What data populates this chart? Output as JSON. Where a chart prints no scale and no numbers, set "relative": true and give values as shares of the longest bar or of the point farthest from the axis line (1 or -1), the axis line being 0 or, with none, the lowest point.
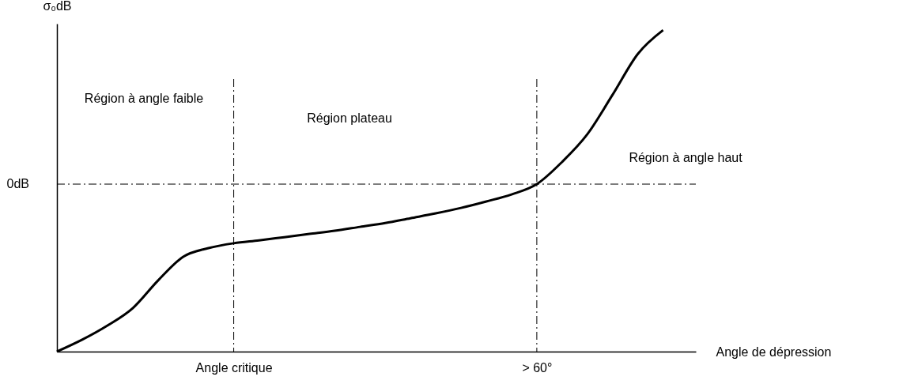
{
  "chart_data": {
    "type": "line",
    "relative": true,
    "xlabel": "Angle de dépression",
    "ylabel": "σ₀dB",
    "categories": [
      null,
      null,
      null,
      null,
      null,
      null,
      null,
      "Angle critique",
      null,
      null,
      null,
      null,
      null,
      null,
      null,
      null,
      null,
      null,
      null,
      "> 60°",
      null,
      null,
      null,
      null,
      null
    ],
    "series": [
      {
        "color": "#000000",
        "values": [
          0,
          0.037,
          0.081,
          0.135,
          0.221,
          0.295,
          0.322,
          0.337,
          0.346,
          0.356,
          0.366,
          0.376,
          0.388,
          0.4,
          0.415,
          0.43,
          0.447,
          0.467,
          0.489,
          0.521,
          0.59,
          0.676,
          0.799,
          0.926,
          1
        ]
      }
    ],
    "ref_lines": [
      {
        "axis": "x",
        "value": "Angle critique",
        "color": "#000000",
        "line_style": "dashed"
      },
      {
        "axis": "x",
        "value": "> 60°",
        "color": "#000000",
        "line_style": "dashed"
      },
      {
        "axis": "y",
        "value": 0.521,
        "label": "0dB",
        "color": "#000000",
        "line_style": "dashed"
      }
    ],
    "annotations": [
      "Région à angle faible",
      "Région plateau",
      "Région à angle haut"
    ],
    "grid": false,
    "marker": "none",
    "line_style": "solid"
  }
}
